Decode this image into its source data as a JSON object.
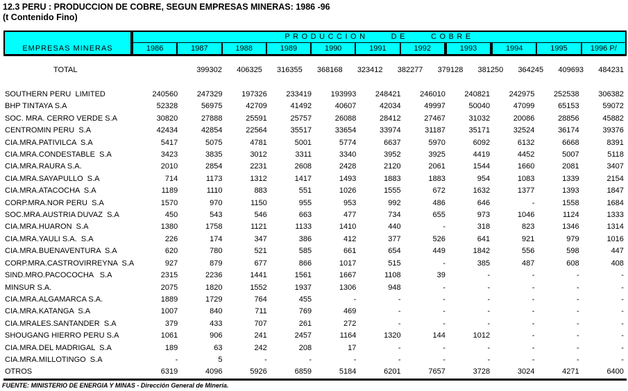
{
  "title": "12.3 PERU : PRODUCCION DE COBRE, SEGUN EMPRESAS MINERAS: 1986 -96",
  "subtitle": "(t Contenido Fino)",
  "footer": "FUENTE: MINISTERIO DE ENERGIA Y MINAS - Dirección General de Minería.",
  "colors": {
    "header_bg": "#00FFFF",
    "border": "#000000",
    "text": "#000000"
  },
  "table": {
    "left_header": "EMPRESAS MINERAS",
    "group_header": "PRODUCCION  DE  COBRE",
    "years": [
      "1986",
      "1987",
      "1988",
      "1989",
      "1990",
      "1991",
      "1992",
      "1993",
      "1994",
      "1995",
      "1996 P/"
    ],
    "total_row": {
      "label": "TOTAL",
      "values": [
        "399302",
        "406325",
        "316355",
        "368168",
        "323412",
        "382277",
        "379128",
        "381250",
        "364245",
        "409693",
        "484231"
      ]
    },
    "rows": [
      {
        "name": "SOUTHERN PERU  LIMITED",
        "values": [
          "240560",
          "247329",
          "197326",
          "233419",
          "193993",
          "248421",
          "246010",
          "240821",
          "242975",
          "252538",
          "306382"
        ]
      },
      {
        "name": "BHP TINTAYA S.A",
        "values": [
          "52328",
          "56975",
          "42709",
          "41492",
          "40607",
          "42034",
          "49997",
          "50040",
          "47099",
          "65153",
          "59072"
        ]
      },
      {
        "name": "SOC. MRA. CERRO VERDE S.A",
        "values": [
          "30820",
          "27888",
          "25591",
          "25757",
          "26088",
          "28412",
          "27467",
          "31032",
          "20086",
          "28856",
          "45882"
        ]
      },
      {
        "name": "CENTROMIN PERU  S.A",
        "values": [
          "42434",
          "42854",
          "22564",
          "35517",
          "33654",
          "33974",
          "31187",
          "35171",
          "32524",
          "36174",
          "39376"
        ]
      },
      {
        "name": "CIA.MRA.PATIVILCA  S.A",
        "values": [
          "5417",
          "5075",
          "4781",
          "5001",
          "5774",
          "6637",
          "5970",
          "6092",
          "6132",
          "6668",
          "8391"
        ]
      },
      {
        "name": "CIA.MRA.CONDESTABLE  S.A",
        "values": [
          "3423",
          "3835",
          "3012",
          "3311",
          "3340",
          "3952",
          "3925",
          "4419",
          "4452",
          "5007",
          "5118"
        ]
      },
      {
        "name": "CIA.MRA.RAURA S.A.",
        "values": [
          "2010",
          "2854",
          "2231",
          "2608",
          "2428",
          "2120",
          "2061",
          "1544",
          "1660",
          "2081",
          "3407"
        ]
      },
      {
        "name": "CIA.MRA.SAYAPULLO  S.A",
        "values": [
          "714",
          "1173",
          "1312",
          "1417",
          "1493",
          "1883",
          "1883",
          "954",
          "1083",
          "1339",
          "2154"
        ]
      },
      {
        "name": "CIA.MRA.ATACOCHA  S.A",
        "values": [
          "1189",
          "1110",
          "883",
          "551",
          "1026",
          "1555",
          "672",
          "1632",
          "1377",
          "1393",
          "1847"
        ]
      },
      {
        "name": "CORP.MRA.NOR PERU  S.A",
        "values": [
          "1570",
          "970",
          "1150",
          "955",
          "953",
          "992",
          "486",
          "646",
          "-",
          "1558",
          "1684"
        ]
      },
      {
        "name": "SOC.MRA.AUSTRIA DUVAZ  S.A",
        "values": [
          "450",
          "543",
          "546",
          "663",
          "477",
          "734",
          "655",
          "973",
          "1046",
          "1124",
          "1333"
        ]
      },
      {
        "name": "CIA.MRA.HUARON  S.A",
        "values": [
          "1380",
          "1758",
          "1121",
          "1133",
          "1410",
          "440",
          "-",
          "318",
          "823",
          "1346",
          "1314"
        ]
      },
      {
        "name": "CIA.MRA.YAULI S.A.  S.A",
        "values": [
          "226",
          "174",
          "347",
          "386",
          "412",
          "377",
          "526",
          "641",
          "921",
          "979",
          "1016"
        ]
      },
      {
        "name": "CIA.MRA.BUENAVENTURA  S.A",
        "values": [
          "620",
          "780",
          "521",
          "585",
          "661",
          "654",
          "449",
          "1842",
          "556",
          "598",
          "447"
        ]
      },
      {
        "name": "CORP.MRA.CASTROVIRREYNA  S.A",
        "values": [
          "927",
          "879",
          "677",
          "866",
          "1017",
          "515",
          "-",
          "385",
          "487",
          "608",
          "408"
        ]
      },
      {
        "name": "SIND.MRO.PACOCOCHA   S.A",
        "values": [
          "2315",
          "2236",
          "1441",
          "1561",
          "1667",
          "1108",
          "39",
          "-",
          "-",
          "-",
          "-"
        ]
      },
      {
        "name": "MINSUR S.A.",
        "values": [
          "2075",
          "1820",
          "1552",
          "1937",
          "1306",
          "948",
          "-",
          "-",
          "-",
          "-",
          "-"
        ]
      },
      {
        "name": "CIA.MRA.ALGAMARCA S.A.",
        "values": [
          "1889",
          "1729",
          "764",
          "455",
          "-",
          "-",
          "-",
          "-",
          "-",
          "-",
          "-"
        ]
      },
      {
        "name": "CIA.MRA.KATANGA  S.A",
        "values": [
          "1007",
          "840",
          "711",
          "769",
          "469",
          "-",
          "-",
          "-",
          "-",
          "-",
          "-"
        ]
      },
      {
        "name": "CIA.MRALES.SANTANDER  S.A",
        "values": [
          "379",
          "433",
          "707",
          "261",
          "272",
          "-",
          "-",
          "-",
          "-",
          "-",
          "-"
        ]
      },
      {
        "name": "SHOUGANG HIERRO PERU S.A",
        "values": [
          "1061",
          "906",
          "241",
          "2457",
          "1164",
          "1320",
          "144",
          "1012",
          "-",
          "-",
          "-"
        ]
      },
      {
        "name": "CIA.MRA.DEL MADRIGAL  S.A",
        "values": [
          "189",
          "63",
          "242",
          "208",
          "17",
          "-",
          "-",
          "-",
          "-",
          "-",
          "-"
        ]
      },
      {
        "name": "CIA.MRA.MILLOTINGO  S.A",
        "values": [
          "-",
          "5",
          "-",
          "-",
          "-",
          "-",
          "-",
          "-",
          "-",
          "-",
          "-"
        ]
      },
      {
        "name": "OTROS",
        "values": [
          "6319",
          "4096",
          "5926",
          "6859",
          "5184",
          "6201",
          "7657",
          "3728",
          "3024",
          "4271",
          "6400"
        ]
      }
    ]
  }
}
